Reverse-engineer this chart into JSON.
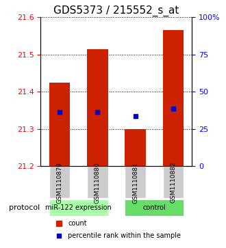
{
  "title": "GDS5373 / 215552_s_at",
  "samples": [
    "GSM1110879",
    "GSM1110880",
    "GSM1110881",
    "GSM1110882"
  ],
  "bar_bottoms": [
    21.2,
    21.2,
    21.2,
    21.2
  ],
  "bar_tops": [
    21.425,
    21.515,
    21.3,
    21.565
  ],
  "blue_values": [
    21.345,
    21.345,
    21.335,
    21.355
  ],
  "ylim_left": [
    21.2,
    21.6
  ],
  "yticks_left": [
    21.2,
    21.3,
    21.4,
    21.5,
    21.6
  ],
  "ylim_right": [
    0,
    100
  ],
  "yticks_right": [
    0,
    25,
    50,
    75,
    100
  ],
  "ytick_labels_right": [
    "0",
    "25",
    "50",
    "75",
    "100%"
  ],
  "bar_color": "#cc2200",
  "marker_color": "#0000cc",
  "bar_width": 0.55,
  "groups": [
    {
      "label": "miR-122 expression",
      "indices": [
        0,
        1
      ],
      "color": "#aaffaa"
    },
    {
      "label": "control",
      "indices": [
        2,
        3
      ],
      "color": "#66dd66"
    }
  ],
  "protocol_label": "protocol",
  "legend_count_label": "count",
  "legend_percentile_label": "percentile rank within the sample",
  "title_fontsize": 11,
  "axis_label_fontsize": 8,
  "tick_fontsize": 8
}
